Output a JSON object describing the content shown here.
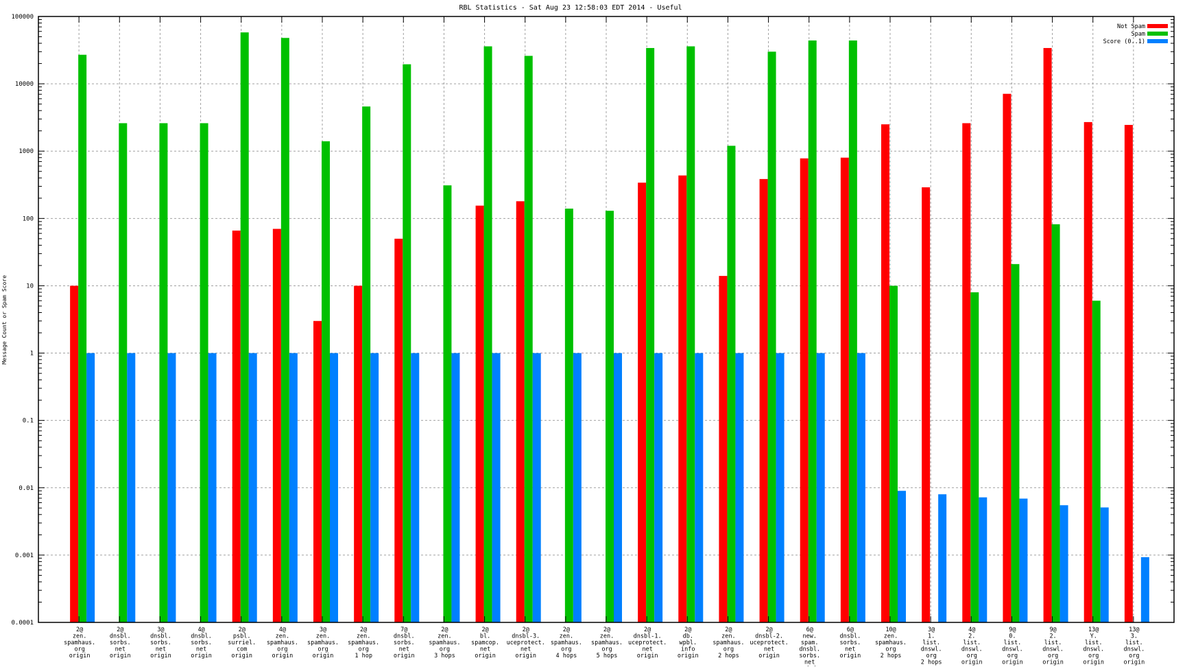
{
  "chart_data": {
    "type": "bar",
    "title": "RBL Statistics - Sat Aug 23 12:58:03 EDT 2014 - Useful",
    "xlabel": "",
    "ylabel": "Message Count or Spam Score",
    "yscale": "log",
    "ylim": [
      0.0001,
      100000
    ],
    "yticks": [
      "0.0001",
      "0.001",
      "0.01",
      "0.1",
      "1",
      "10",
      "100",
      "1000",
      "10000",
      "100000"
    ],
    "grid": true,
    "legend_position": "top-right",
    "categories": [
      [
        "2@",
        "zen.",
        "spamhaus.",
        "org",
        "origin"
      ],
      [
        "2@",
        "dnsbl.",
        "sorbs.",
        "net",
        "origin"
      ],
      [
        "3@",
        "dnsbl.",
        "sorbs.",
        "net",
        "origin"
      ],
      [
        "4@",
        "dnsbl.",
        "sorbs.",
        "net",
        "origin"
      ],
      [
        "2@",
        "psbl.",
        "surriel.",
        "com",
        "origin"
      ],
      [
        "4@",
        "zen.",
        "spamhaus.",
        "org",
        "origin"
      ],
      [
        "3@",
        "zen.",
        "spamhaus.",
        "org",
        "origin"
      ],
      [
        "2@",
        "zen.",
        "spamhaus.",
        "org",
        "1 hop"
      ],
      [
        "7@",
        "dnsbl.",
        "sorbs.",
        "net",
        "origin"
      ],
      [
        "2@",
        "zen.",
        "spamhaus.",
        "org",
        "3 hops"
      ],
      [
        "2@",
        "bl.",
        "spamcop.",
        "net",
        "origin"
      ],
      [
        "2@",
        "dnsbl-3.",
        "uceprotect.",
        "net",
        "origin"
      ],
      [
        "2@",
        "zen.",
        "spamhaus.",
        "org",
        "4 hops"
      ],
      [
        "2@",
        "zen.",
        "spamhaus.",
        "org",
        "5 hops"
      ],
      [
        "2@",
        "dnsbl-1.",
        "uceprotect.",
        "net",
        "origin"
      ],
      [
        "2@",
        "db.",
        "wpbl.",
        "info",
        "origin"
      ],
      [
        "2@",
        "zen.",
        "spamhaus.",
        "org",
        "2 hops"
      ],
      [
        "2@",
        "dnsbl-2.",
        "uceprotect.",
        "net",
        "origin"
      ],
      [
        "6@",
        "new.",
        "spam.",
        "dnsbl.",
        "sorbs.",
        "net",
        "origin"
      ],
      [
        "6@",
        "dnsbl.",
        "sorbs.",
        "net",
        "origin"
      ],
      [
        "10@",
        "zen.",
        "spamhaus.",
        "org",
        "2 hops"
      ],
      [
        "3@",
        "1.",
        "list.",
        "dnswl.",
        "org",
        "2 hops"
      ],
      [
        "4@",
        "2.",
        "list.",
        "dnswl.",
        "org",
        "origin"
      ],
      [
        "9@",
        "0.",
        "list.",
        "dnswl.",
        "org",
        "origin"
      ],
      [
        "9@",
        "2.",
        "list.",
        "dnswl.",
        "org",
        "origin"
      ],
      [
        "13@",
        "Y.",
        "list.",
        "dnswl.",
        "org",
        "origin"
      ],
      [
        "13@",
        "3.",
        "list.",
        "dnswl.",
        "org",
        "origin"
      ]
    ],
    "series": [
      {
        "name": "Not Spam",
        "color": "#ff0000",
        "values": [
          10,
          null,
          null,
          null,
          66,
          70,
          3,
          10,
          50,
          null,
          155,
          180,
          null,
          null,
          340,
          435,
          14,
          385,
          780,
          800,
          2500,
          290,
          2600,
          7100,
          34000,
          2700,
          2450
        ]
      },
      {
        "name": "Spam",
        "color": "#00c000",
        "values": [
          27000,
          2600,
          2600,
          2600,
          58000,
          48000,
          1400,
          4600,
          19500,
          310,
          36000,
          26000,
          140,
          130,
          34000,
          36000,
          1200,
          30000,
          44000,
          44000,
          10,
          null,
          8,
          21,
          82,
          6,
          null
        ]
      },
      {
        "name": "Score (0..1)",
        "color": "#0080ff",
        "values": [
          1,
          1,
          1,
          1,
          1,
          1,
          1,
          1,
          1,
          1,
          1,
          1,
          1,
          1,
          1,
          1,
          1,
          1,
          1,
          1,
          0.009,
          0.008,
          0.0072,
          0.0069,
          0.0055,
          0.0051,
          0.00093
        ]
      }
    ]
  }
}
